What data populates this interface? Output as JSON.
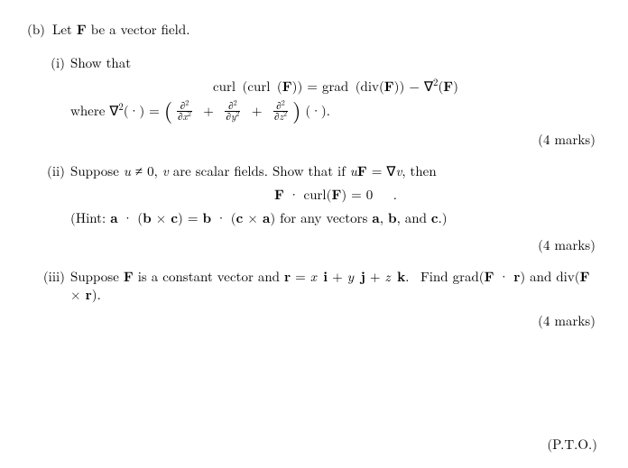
{
  "colors": {
    "text": "#000000",
    "background": "#ffffff"
  },
  "typography": {
    "base_fontsize_pt": 11,
    "family": "Computer Modern / Times"
  },
  "partB": {
    "label": "(b)",
    "intro_pre": "Let ",
    "intro_F": "F",
    "intro_post": " be a vector field."
  },
  "i": {
    "label": "(i)",
    "show": "Show that",
    "eq": "curl (curl (F)) = grad (div(F)) − ∇²(F)",
    "where_pre": "where ∇²(·) = ",
    "where_frac1_num": "∂²",
    "where_frac1_den": "∂x²",
    "where_frac2_num": "∂²",
    "where_frac2_den": "∂y²",
    "where_frac3_num": "∂²",
    "where_frac3_den": "∂z²",
    "where_post": " (·).",
    "marks": "(4 marks)"
  },
  "ii": {
    "label": "(ii)",
    "line1": "Suppose u ≠ 0, v are scalar fields. Show that if uF = ∇v, then",
    "eq": "F · curl(F) = 0   .",
    "hint": "(Hint: a · (b × c) = b · (c × a) for any vectors a, b, and c.)",
    "marks": "(4 marks)"
  },
  "iii": {
    "label": "(iii)",
    "line1a": "Suppose ",
    "line1F": "F",
    "line1b": " is a constant vector and ",
    "line1r": "r",
    "line1c": " = x i + y j + z k.  Find grad(",
    "line1d": "F · r",
    "line1e": ") and div(",
    "line1f": "F × r",
    "line1g": ").",
    "marks": "(4 marks)"
  },
  "pto": "(P.T.O.)"
}
